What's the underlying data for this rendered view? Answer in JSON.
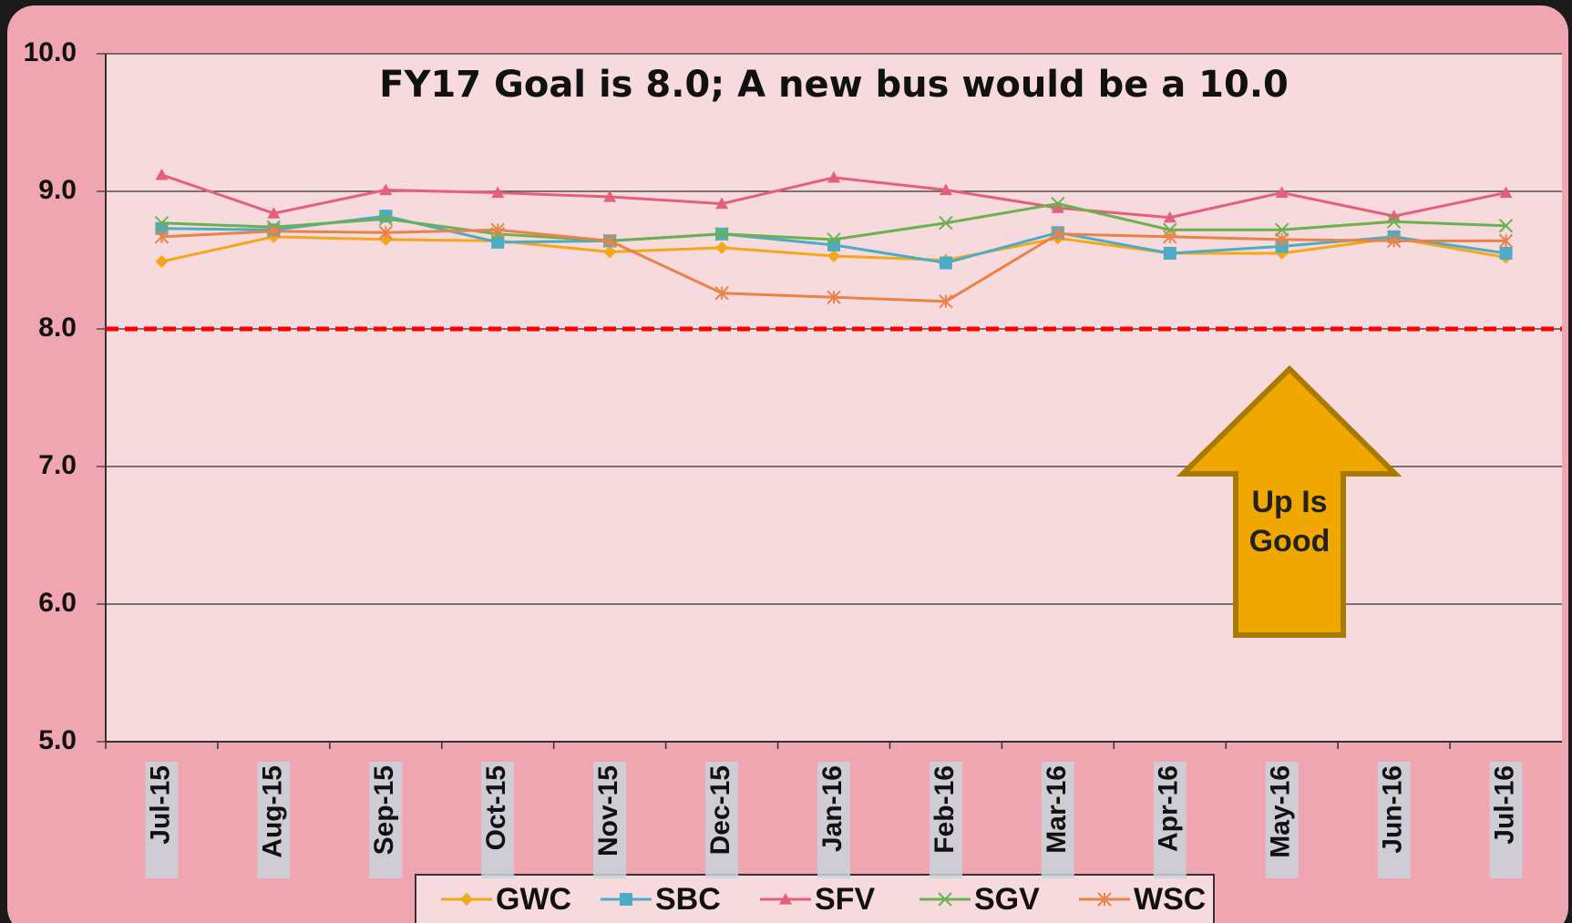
{
  "chart_data": {
    "type": "line",
    "title": "FY17  Goal is 8.0; A new bus would be a 10.0",
    "annotation": [
      "Up Is",
      "Good"
    ],
    "categories": [
      "Jul-15",
      "Aug-15",
      "Sep-15",
      "Oct-15",
      "Nov-15",
      "Dec-15",
      "Jan-16",
      "Feb-16",
      "Mar-16",
      "Apr-16",
      "May-16",
      "Jun-16",
      "Jul-16"
    ],
    "series": [
      {
        "name": "GWC",
        "color": "#f2a818",
        "marker": "diamond",
        "values": [
          8.49,
          8.67,
          8.65,
          8.64,
          8.56,
          8.59,
          8.53,
          8.5,
          8.66,
          8.55,
          8.55,
          8.66,
          8.52
        ]
      },
      {
        "name": "SBC",
        "color": "#4bacc6",
        "marker": "square",
        "values": [
          8.73,
          8.72,
          8.82,
          8.63,
          8.64,
          8.69,
          8.61,
          8.48,
          8.7,
          8.55,
          8.6,
          8.67,
          8.55
        ]
      },
      {
        "name": "SFV",
        "color": "#e4607a",
        "marker": "triangle",
        "values": [
          9.12,
          8.84,
          9.01,
          8.99,
          8.96,
          8.91,
          9.1,
          9.01,
          8.88,
          8.81,
          8.99,
          8.82,
          8.99
        ]
      },
      {
        "name": "SGV",
        "color": "#6ab150",
        "marker": "x",
        "values": [
          8.77,
          8.74,
          8.8,
          8.69,
          8.64,
          8.69,
          8.65,
          8.77,
          8.91,
          8.72,
          8.72,
          8.78,
          8.75
        ]
      },
      {
        "name": "WSC",
        "color": "#e8834a",
        "marker": "star",
        "values": [
          8.67,
          8.71,
          8.7,
          8.72,
          8.64,
          8.26,
          8.23,
          8.2,
          8.69,
          8.67,
          8.65,
          8.64,
          8.64
        ]
      }
    ],
    "goal": 8.0,
    "goal_color": "#ff0000",
    "ylim": [
      5.0,
      10.0
    ],
    "yticks": [
      {
        "value": 5,
        "label": "5.0"
      },
      {
        "value": 6,
        "label": "6.0"
      },
      {
        "value": 7,
        "label": "7.0"
      },
      {
        "value": 8,
        "label": "8.0"
      },
      {
        "value": 9,
        "label": "9.0"
      },
      {
        "value": 10,
        "label": "10.0"
      }
    ],
    "grid": true,
    "legend": "bottom"
  }
}
